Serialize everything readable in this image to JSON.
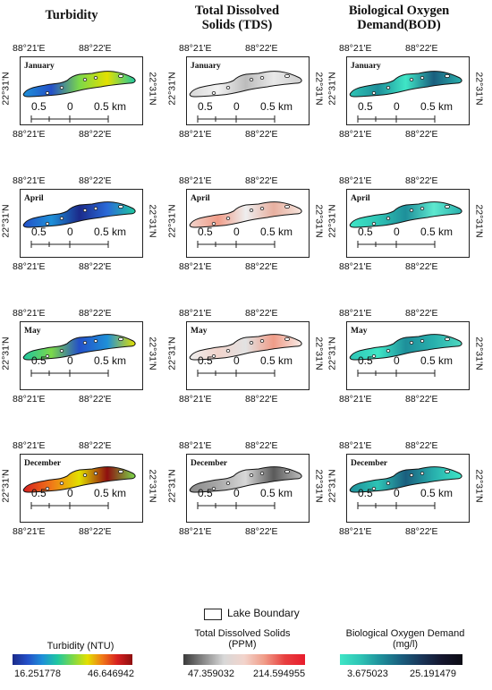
{
  "columns": [
    {
      "title": "Turbidity",
      "colormap": [
        "#1b2a8a",
        "#2450c8",
        "#1e90d8",
        "#1fc7a0",
        "#7bd84a",
        "#e3e000",
        "#f07818",
        "#d72020",
        "#8e0f0f"
      ]
    },
    {
      "title": "Total Dissolved Solids (TDS)",
      "colormap": [
        "#3a3a3a",
        "#8a8a8a",
        "#d8d8d8",
        "#f2d4cc",
        "#f09c88",
        "#e84040",
        "#e81c2c"
      ]
    },
    {
      "title": "Biological Oxygen Demand(BOD)",
      "colormap": [
        "#3fe6c6",
        "#2ec4b5",
        "#1e8f9a",
        "#1a5e7e",
        "#1a3558",
        "#15162e",
        "#0c0c14"
      ]
    }
  ],
  "months": [
    "January",
    "April",
    "May",
    "December"
  ],
  "map": {
    "top_ticks": [
      "88°21'E",
      "88°22'E"
    ],
    "bottom_ticks": [
      "88°21'E",
      "88°22'E"
    ],
    "left_lat": "22°31'N",
    "right_lat": "22°31'N",
    "scalebar": [
      "0.5",
      "0",
      "0.5 km"
    ]
  },
  "panel_colors": [
    [
      [
        "#1e90d8",
        "#2450c8",
        "#7bd84a",
        "#e3e000",
        "#1fc7a0"
      ],
      [
        "#d8d8d8",
        "#f2f2f2",
        "#bcbcbc",
        "#e8e8e8",
        "#cfcfcf"
      ],
      [
        "#2ec4b5",
        "#1e8f9a",
        "#3fe6c6",
        "#1a5e7e",
        "#28b0ad"
      ]
    ],
    [
      [
        "#2450c8",
        "#1e90d8",
        "#1b2a8a",
        "#2a6ad8",
        "#1fc7a0"
      ],
      [
        "#f2d4cc",
        "#f09c88",
        "#eeeeee",
        "#e8b0a0",
        "#f6e4dd"
      ],
      [
        "#3fe6c6",
        "#2ec4b5",
        "#1e8f9a",
        "#5ee8cf",
        "#28b0ad"
      ]
    ],
    [
      [
        "#1fc7a0",
        "#7bd84a",
        "#2450c8",
        "#1e90d8",
        "#e3e000"
      ],
      [
        "#eeeeee",
        "#f2d4cc",
        "#e2e2e2",
        "#f09c88",
        "#f8ece7"
      ],
      [
        "#2ec4b5",
        "#3fe6c6",
        "#1e8f9a",
        "#28b0ad",
        "#4fd8c0"
      ]
    ],
    [
      [
        "#d72020",
        "#f07818",
        "#e3e000",
        "#8e0f0f",
        "#7bd84a"
      ],
      [
        "#8a8a8a",
        "#a8a8a8",
        "#d8d8d8",
        "#5a5a5a",
        "#bdbdbd"
      ],
      [
        "#1e8f9a",
        "#2ec4b5",
        "#1a5e7e",
        "#28b0ad",
        "#3fe6c6"
      ]
    ]
  ],
  "legend": {
    "boundary_label": "Lake Boundary",
    "bars": [
      {
        "label": "Turbidity (NTU)",
        "min": "16.251778",
        "max": "46.646942"
      },
      {
        "label": "Total Dissolved Solids (PPM)",
        "min": "47.359032",
        "max": "214.594955"
      },
      {
        "label": "Biological Oxygen Demand (mg/l)",
        "min": "3.675023",
        "max": "25.191479"
      }
    ]
  }
}
